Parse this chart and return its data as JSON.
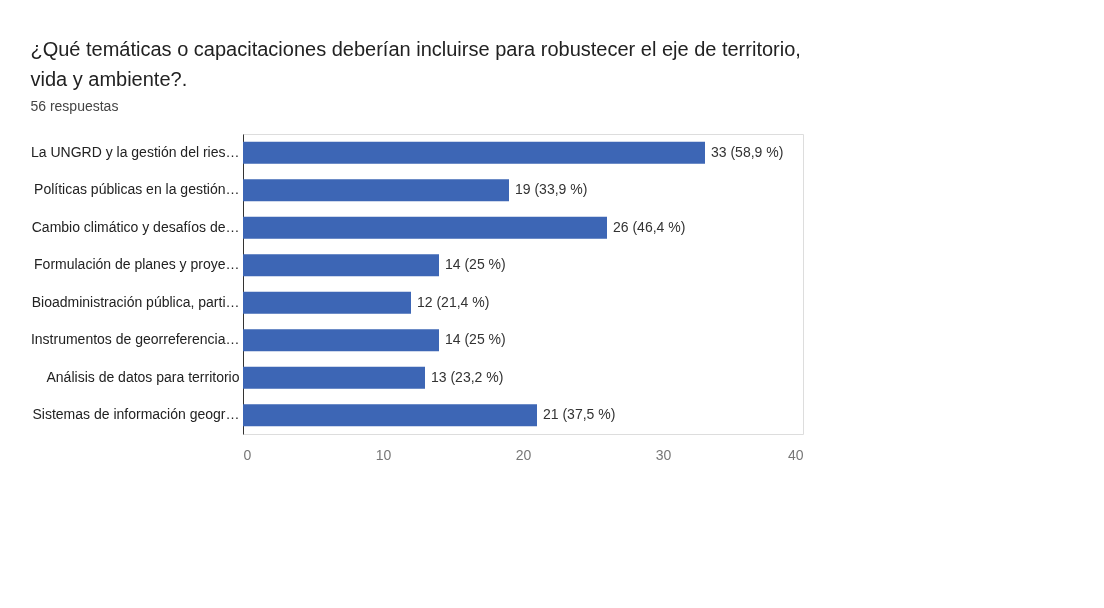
{
  "chart_data": {
    "type": "bar",
    "orientation": "horizontal",
    "title": "¿Qué temáticas o capacitaciones deberían incluirse para robustecer el eje de territorio, vida y ambiente?.",
    "subtitle": "56 respuestas",
    "categories": [
      "La UNGRD y la gestión del ries…",
      "Políticas públicas en la gestión…",
      "Cambio climático y desafíos de…",
      "Formulación de planes y proye…",
      "Bioadministración pública, parti…",
      "Instrumentos de georreferencia…",
      "Análisis de datos para territorio",
      "Sistemas de información geogr…"
    ],
    "values": [
      33,
      19,
      26,
      14,
      12,
      14,
      13,
      21
    ],
    "value_labels": [
      "33 (58,9 %)",
      "19 (33,9 %)",
      "26 (46,4 %)",
      "14 (25 %)",
      "12 (21,4 %)",
      "14 (25 %)",
      "13 (23,2 %)",
      "21 (37,5 %)"
    ],
    "color": "#3d66b5",
    "xlim": [
      0,
      40
    ],
    "xticks": [
      0,
      10,
      20,
      30,
      40
    ],
    "grid": false
  }
}
